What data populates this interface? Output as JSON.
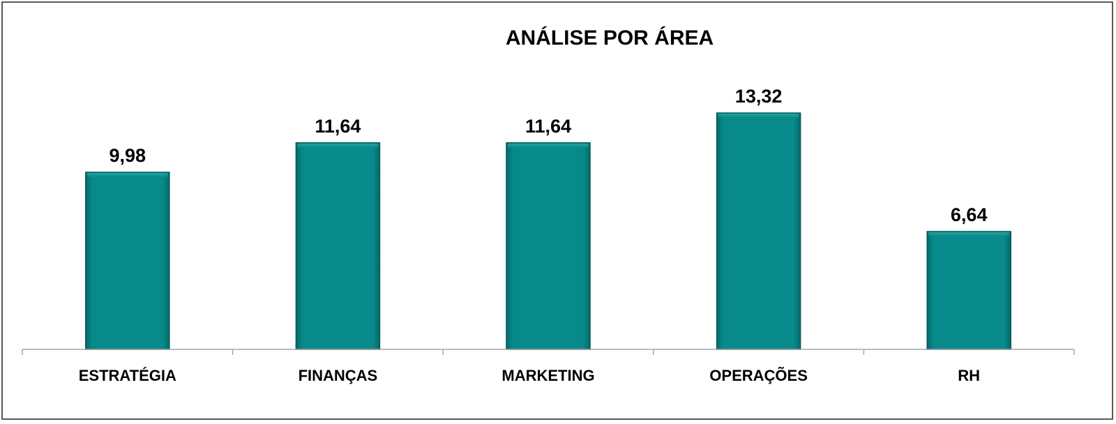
{
  "chart_data": {
    "type": "bar",
    "title": "ANÁLISE POR ÁREA",
    "categories": [
      "ESTRATÉGIA",
      "FINANÇAS",
      "MARKETING",
      "OPERAÇÕES",
      "RH"
    ],
    "values": [
      9.98,
      11.64,
      11.64,
      13.32,
      6.64
    ],
    "data_labels": [
      "9,98",
      "11,64",
      "11,64",
      "13,32",
      "6,64"
    ],
    "xlabel": "",
    "ylabel": "",
    "ylim": [
      0,
      17.5
    ],
    "grid": false,
    "legend": "none",
    "bar_color": "#088A8A",
    "bar_edge_color": "#04595A",
    "axis_color": "#A6A6A6",
    "border_color": "#595959"
  }
}
